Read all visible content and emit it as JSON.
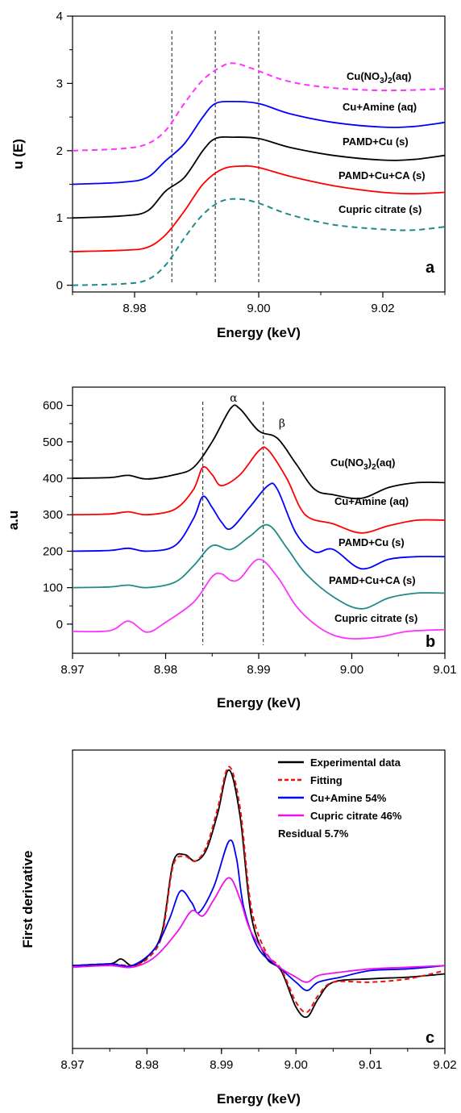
{
  "chart_data": [
    {
      "type": "line",
      "panel_label": "a",
      "xlabel": "Energy (keV)",
      "ylabel": "u (E)",
      "xlim": [
        8.97,
        9.03
      ],
      "ylim": [
        -0.1,
        4.0
      ],
      "xticks": [
        8.98,
        9.0,
        9.02
      ],
      "xtick_labels": [
        "8.98",
        "9.00",
        "9.02"
      ],
      "yticks": [
        0,
        1,
        2,
        3,
        4
      ],
      "ytick_labels": [
        "0",
        "1",
        "2",
        "3",
        "4"
      ],
      "vlines": [
        8.986,
        8.993,
        9.0
      ],
      "series": [
        {
          "name": "Cu(NO3)2(aq)",
          "label_main": "Cu(NO",
          "label_sub": "3",
          "label_mid": ")",
          "label_sub2": "2",
          "label_end": "(aq)",
          "color": "#ff33ff",
          "dashed": true,
          "x": [
            8.97,
            8.978,
            8.982,
            8.985,
            8.988,
            8.991,
            8.994,
            8.996,
            8.999,
            9.004,
            9.01,
            9.018,
            9.024,
            9.03
          ],
          "y": [
            2.0,
            2.03,
            2.1,
            2.3,
            2.7,
            3.05,
            3.25,
            3.3,
            3.22,
            3.05,
            2.95,
            2.9,
            2.9,
            2.92
          ]
        },
        {
          "name": "Cu+Amine (aq)",
          "color": "#0000ff",
          "dashed": false,
          "x": [
            8.97,
            8.978,
            8.982,
            8.985,
            8.988,
            8.991,
            8.993,
            8.996,
            9.0,
            9.005,
            9.012,
            9.02,
            9.025,
            9.03
          ],
          "y": [
            1.5,
            1.53,
            1.6,
            1.85,
            2.1,
            2.5,
            2.7,
            2.73,
            2.7,
            2.55,
            2.42,
            2.35,
            2.36,
            2.42
          ]
        },
        {
          "name": "PAMD+Cu (s)",
          "color": "#000000",
          "dashed": false,
          "x": [
            8.97,
            8.978,
            8.982,
            8.985,
            8.988,
            8.991,
            8.993,
            8.996,
            9.0,
            9.005,
            9.012,
            9.02,
            9.025,
            9.03
          ],
          "y": [
            1.0,
            1.03,
            1.1,
            1.4,
            1.6,
            2.0,
            2.18,
            2.2,
            2.18,
            2.05,
            1.93,
            1.86,
            1.87,
            1.93
          ]
        },
        {
          "name": "PAMD+Cu+CA (s)",
          "color": "#ff0000",
          "dashed": false,
          "x": [
            8.97,
            8.978,
            8.982,
            8.985,
            8.988,
            8.991,
            8.994,
            8.997,
            9.0,
            9.005,
            9.012,
            9.02,
            9.025,
            9.03
          ],
          "y": [
            0.5,
            0.52,
            0.56,
            0.75,
            1.1,
            1.5,
            1.72,
            1.77,
            1.75,
            1.62,
            1.48,
            1.38,
            1.36,
            1.38
          ]
        },
        {
          "name": "Cupric citrate (s)",
          "color": "#1f8a8a",
          "dashed": true,
          "x": [
            8.97,
            8.978,
            8.982,
            8.985,
            8.988,
            8.991,
            8.994,
            8.997,
            9.0,
            9.005,
            9.012,
            9.02,
            9.025,
            9.03
          ],
          "y": [
            0.0,
            0.02,
            0.08,
            0.3,
            0.7,
            1.05,
            1.25,
            1.28,
            1.22,
            1.05,
            0.9,
            0.83,
            0.82,
            0.87
          ]
        }
      ]
    },
    {
      "type": "line",
      "panel_label": "b",
      "xlabel": "Energy (keV)",
      "ylabel": "a.u",
      "xlim": [
        8.97,
        9.01
      ],
      "ylim": [
        -80,
        650
      ],
      "xticks": [
        8.97,
        8.98,
        8.99,
        9.0,
        9.01
      ],
      "xtick_labels": [
        "8.97",
        "8.98",
        "8.99",
        "9.00",
        "9.01"
      ],
      "yticks": [
        0,
        100,
        200,
        300,
        400,
        500,
        600
      ],
      "ytick_labels": [
        "0",
        "100",
        "200",
        "300",
        "400",
        "500",
        "600"
      ],
      "vlines": [
        8.984,
        8.9905
      ],
      "peak_labels": [
        {
          "text": "α",
          "x": 8.9873,
          "y": 610
        },
        {
          "text": "β",
          "x": 8.9925,
          "y": 540
        }
      ],
      "series": [
        {
          "name": "Cu(NO3)2(aq)",
          "label_main": "Cu(NO",
          "label_sub": "3",
          "label_mid": ")",
          "label_sub2": "2",
          "label_end": "(aq)",
          "color": "#000000",
          "x": [
            8.97,
            8.974,
            8.976,
            8.978,
            8.981,
            8.983,
            8.985,
            8.987,
            8.988,
            8.99,
            8.992,
            8.994,
            8.996,
            8.998,
            9.001,
            9.004,
            9.007,
            9.01
          ],
          "y": [
            400,
            402,
            408,
            398,
            410,
            430,
            500,
            592,
            590,
            530,
            510,
            440,
            370,
            355,
            345,
            375,
            388,
            388
          ]
        },
        {
          "name": "Cu+Amine (aq)",
          "color": "#ff0000",
          "x": [
            8.97,
            8.974,
            8.976,
            8.978,
            8.981,
            8.983,
            8.984,
            8.985,
            8.986,
            8.988,
            8.99,
            8.991,
            8.993,
            8.995,
            8.998,
            9.001,
            9.004,
            9.007,
            9.01
          ],
          "y": [
            300,
            302,
            308,
            300,
            315,
            370,
            430,
            410,
            380,
            410,
            475,
            478,
            400,
            300,
            275,
            250,
            270,
            285,
            285
          ]
        },
        {
          "name": "PAMD+Cu (s)",
          "color": "#0000ff",
          "x": [
            8.97,
            8.974,
            8.976,
            8.978,
            8.981,
            8.983,
            8.984,
            8.985,
            8.986,
            8.987,
            8.989,
            8.991,
            8.992,
            8.994,
            8.996,
            8.998,
            9.001,
            9.004,
            9.007,
            9.01
          ],
          "y": [
            200,
            202,
            208,
            200,
            215,
            290,
            350,
            320,
            280,
            262,
            320,
            380,
            370,
            250,
            198,
            205,
            152,
            178,
            185,
            185
          ]
        },
        {
          "name": "PAMD+Cu+CA (s)",
          "color": "#1f8a8a",
          "x": [
            8.97,
            8.974,
            8.976,
            8.978,
            8.981,
            8.983,
            8.985,
            8.987,
            8.989,
            8.991,
            8.993,
            8.995,
            8.998,
            9.001,
            9.004,
            9.007,
            9.01
          ],
          "y": [
            100,
            102,
            107,
            100,
            115,
            160,
            215,
            205,
            240,
            272,
            210,
            140,
            75,
            42,
            72,
            85,
            85
          ]
        },
        {
          "name": "Cupric citrate (s)",
          "color": "#ff33ff",
          "x": [
            8.97,
            8.974,
            8.976,
            8.978,
            8.98,
            8.983,
            8.985,
            8.986,
            8.987,
            8.988,
            8.99,
            8.992,
            8.994,
            8.996,
            8.998,
            9.0,
            9.003,
            9.006,
            9.01
          ],
          "y": [
            -20,
            -18,
            8,
            -22,
            5,
            60,
            130,
            138,
            120,
            125,
            178,
            130,
            50,
            0,
            -30,
            -40,
            -35,
            -20,
            -15
          ]
        }
      ]
    },
    {
      "type": "line",
      "panel_label": "c",
      "xlabel": "Energy (keV)",
      "ylabel": "First derivative",
      "xlim": [
        8.97,
        9.02
      ],
      "ylim": [
        -0.5,
        1.3
      ],
      "xticks": [
        8.97,
        8.98,
        8.99,
        9.0,
        9.01,
        9.02
      ],
      "xtick_labels": [
        "8.97",
        "8.98",
        "8.99",
        "9.00",
        "9.01",
        "9.02"
      ],
      "legend_position": "top-right",
      "annotation": "Residual 5.7%",
      "series": [
        {
          "name": "Experimental data",
          "color": "#000000",
          "dashed": false,
          "x": [
            8.97,
            8.975,
            8.9765,
            8.978,
            8.98,
            8.982,
            8.9835,
            8.985,
            8.9865,
            8.988,
            8.9895,
            8.991,
            8.9925,
            8.994,
            8.996,
            8.998,
            9.0,
            9.0015,
            9.003,
            9.005,
            9.01,
            9.015,
            9.02
          ],
          "y": [
            0.0,
            0.01,
            0.04,
            0.0,
            0.05,
            0.2,
            0.62,
            0.67,
            0.63,
            0.7,
            0.92,
            1.18,
            0.9,
            0.3,
            0.05,
            -0.03,
            -0.25,
            -0.31,
            -0.2,
            -0.1,
            -0.08,
            -0.07,
            -0.05
          ]
        },
        {
          "name": "Fitting",
          "color": "#ee1111",
          "dashed": true,
          "x": [
            8.97,
            8.975,
            8.978,
            8.98,
            8.982,
            8.9835,
            8.985,
            8.9865,
            8.988,
            8.9895,
            8.991,
            8.9925,
            8.994,
            8.996,
            8.998,
            9.0,
            9.0015,
            9.003,
            9.005,
            9.01,
            9.015,
            9.02
          ],
          "y": [
            0.0,
            0.01,
            0.0,
            0.04,
            0.18,
            0.6,
            0.66,
            0.63,
            0.72,
            0.95,
            1.2,
            0.95,
            0.35,
            0.08,
            -0.02,
            -0.22,
            -0.28,
            -0.18,
            -0.1,
            -0.1,
            -0.08,
            -0.03
          ]
        },
        {
          "name": "Cu+Amine 54%",
          "color": "#0000ee",
          "dashed": false,
          "x": [
            8.97,
            8.975,
            8.978,
            8.981,
            8.983,
            8.9845,
            8.986,
            8.987,
            8.989,
            8.991,
            8.992,
            8.993,
            8.995,
            8.998,
            9.0,
            9.0015,
            9.003,
            9.006,
            9.01,
            9.015,
            9.02
          ],
          "y": [
            0.0,
            0.01,
            0.0,
            0.1,
            0.28,
            0.45,
            0.38,
            0.32,
            0.48,
            0.75,
            0.65,
            0.35,
            0.1,
            -0.02,
            -0.1,
            -0.15,
            -0.1,
            -0.07,
            -0.03,
            -0.02,
            0.0
          ]
        },
        {
          "name": "Cupric citrate 46%",
          "color": "#ee11ee",
          "dashed": false,
          "x": [
            8.97,
            8.975,
            8.978,
            8.981,
            8.984,
            8.986,
            8.9875,
            8.989,
            8.991,
            8.9925,
            8.994,
            8.997,
            9.0,
            9.0015,
            9.003,
            9.006,
            9.01,
            9.015,
            9.02
          ],
          "y": [
            -0.01,
            0.0,
            -0.01,
            0.05,
            0.2,
            0.33,
            0.3,
            0.4,
            0.53,
            0.4,
            0.2,
            0.02,
            -0.07,
            -0.1,
            -0.06,
            -0.04,
            -0.02,
            -0.01,
            0.0
          ]
        }
      ]
    }
  ]
}
